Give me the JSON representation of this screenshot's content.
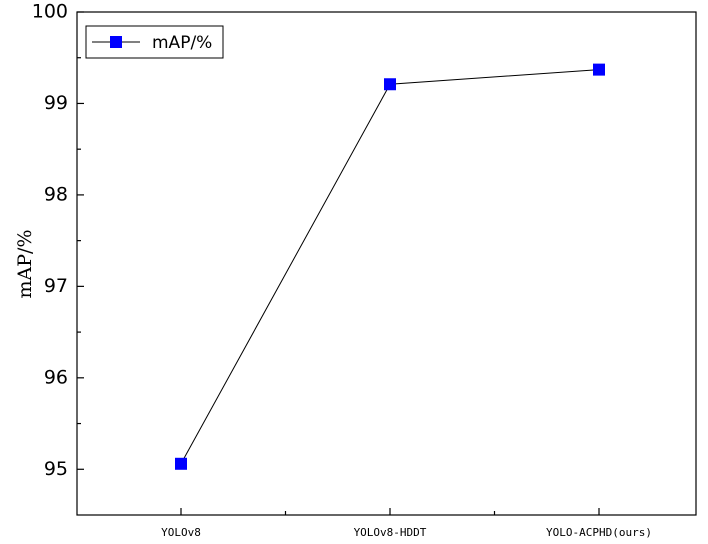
{
  "chart_data": {
    "type": "line",
    "categories": [
      "YOLOv8",
      "YOLOv8-HDDT",
      "YOLO-ACPHD(ours)"
    ],
    "series": [
      {
        "name": "mAP/%",
        "values": [
          95.06,
          99.21,
          99.37
        ],
        "color": "#0000ff",
        "line_color": "#000000",
        "marker": "square"
      }
    ],
    "xlabel": "",
    "ylabel": "mAP/%",
    "ylim": [
      94.5,
      100
    ],
    "yticks": [
      "95",
      "96",
      "97",
      "98",
      "99",
      "100"
    ],
    "legend_position": "top-left",
    "grid": false
  }
}
